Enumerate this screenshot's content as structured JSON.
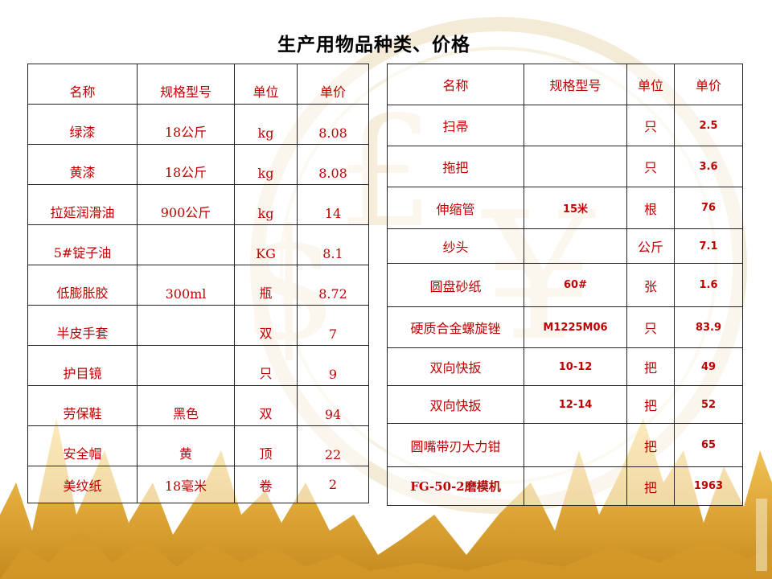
{
  "title": "生产用物品种类、价格",
  "left_table": {
    "headers": [
      "名称",
      "规格型号",
      "单位",
      "单价"
    ],
    "rows": [
      [
        "绿漆",
        "18公斤",
        "kg",
        "8.08"
      ],
      [
        "黄漆",
        "18公斤",
        "kg",
        "8.08"
      ],
      [
        "拉延润滑油",
        "900公斤",
        "kg",
        "14"
      ],
      [
        "5#锭子油",
        "",
        "KG",
        "8.1"
      ],
      [
        "低膨胀胶",
        "300ml",
        "瓶",
        "8.72"
      ],
      [
        "半皮手套",
        "",
        "双",
        "7"
      ],
      [
        "护目镜",
        "",
        "只",
        "9"
      ],
      [
        "劳保鞋",
        "黑色",
        "双",
        "94"
      ],
      [
        "安全帽",
        "黄",
        "顶",
        "22"
      ],
      [
        "美纹纸",
        "18毫米",
        "卷",
        "2"
      ]
    ]
  },
  "right_table": {
    "headers": [
      "名称",
      "规格型号",
      "单位",
      "单价"
    ],
    "rows": [
      [
        "扫帚",
        "",
        "只",
        "2.5"
      ],
      [
        "拖把",
        "",
        "只",
        "3.6"
      ],
      [
        "伸缩管",
        "15米",
        "根",
        "76"
      ],
      [
        "纱头",
        "",
        "公斤",
        "7.1"
      ],
      [
        "圆盘砂纸",
        "60#",
        "张",
        "1.6"
      ],
      [
        "硬质合金螺旋锉",
        "M1225M06",
        "只",
        "83.9"
      ],
      [
        "双向快扳",
        "10-12",
        "把",
        "49"
      ],
      [
        "双向快扳",
        "12-14",
        "把",
        "52"
      ],
      [
        "圆嘴带刃大力钳",
        "",
        "把",
        "65"
      ],
      [
        "FG-50-2磨模机",
        "",
        "把",
        "1963"
      ]
    ]
  },
  "colors": {
    "text_red": "#c00000",
    "gold": "#e3b341",
    "gold_dark": "#c08a1a",
    "watermark": "#efe2c4"
  }
}
